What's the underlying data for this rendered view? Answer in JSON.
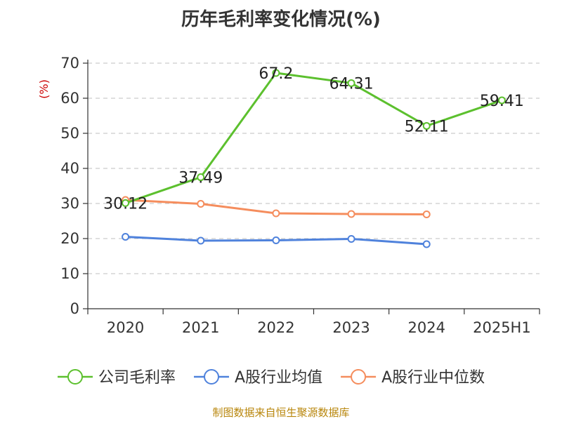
{
  "chart_data": {
    "type": "line",
    "title": "历年毛利率变化情况(%)",
    "y_unit": "(%)",
    "categories": [
      "2020",
      "2021",
      "2022",
      "2023",
      "2024",
      "2025H1"
    ],
    "ylim": [
      0,
      70
    ],
    "yticks": [
      "0",
      "10",
      "20",
      "30",
      "40",
      "50",
      "60",
      "70"
    ],
    "grid": true,
    "legend_position": "bottom",
    "series": [
      {
        "name": "公司毛利率",
        "color": "#5cc02e",
        "values": [
          30.12,
          37.49,
          67.2,
          64.31,
          52.11,
          59.41
        ],
        "labels": [
          "30.12",
          "37.49",
          "67.2",
          "64.31",
          "52.11",
          "59.41"
        ]
      },
      {
        "name": "A股行业均值",
        "color": "#4f82dc",
        "values": [
          20.5,
          19.4,
          19.5,
          19.9,
          18.4,
          null
        ]
      },
      {
        "name": "A股行业中位数",
        "color": "#f58d5d",
        "values": [
          31.0,
          29.9,
          27.2,
          27.0,
          26.9,
          null
        ]
      }
    ],
    "source": "制图数据来自恒生聚源数据库"
  }
}
